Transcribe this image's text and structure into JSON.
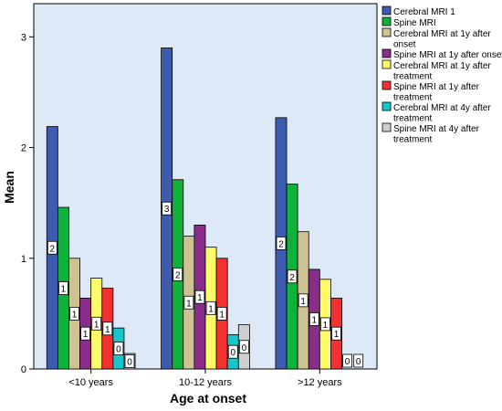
{
  "chart_data": {
    "type": "bar",
    "xlabel": "Age at onset",
    "ylabel": "Mean",
    "ylim": [
      0,
      3.3
    ],
    "yticks": [
      0,
      1,
      2,
      3
    ],
    "grid": false,
    "legend_position": "right",
    "categories": [
      "<10 years",
      "10-12 years",
      ">12 years"
    ],
    "series": [
      {
        "name": "Cerebral MRI 1",
        "color": "#3d5cb0",
        "values": [
          2.19,
          2.9,
          2.27
        ],
        "labels": [
          "2",
          "3",
          "2"
        ]
      },
      {
        "name": "Spine MRI",
        "color": "#0fb13b",
        "values": [
          1.46,
          1.71,
          1.67
        ],
        "labels": [
          "1",
          "2",
          "2"
        ]
      },
      {
        "name": "Cerebral MRI at 1y after onset",
        "color": "#cfc292",
        "values": [
          1.0,
          1.2,
          1.24
        ],
        "labels": [
          "1",
          "1",
          "1"
        ]
      },
      {
        "name": "Spine MRI at 1y after onset",
        "color": "#8a2d8a",
        "values": [
          0.64,
          1.3,
          0.9
        ],
        "labels": [
          "1",
          "1",
          "1"
        ]
      },
      {
        "name": "Cerebral MRI at 1y after treatment",
        "color": "#fffb69",
        "values": [
          0.82,
          1.1,
          0.81
        ],
        "labels": [
          "1",
          "1",
          "1"
        ]
      },
      {
        "name": "Spine MRI at 1y after treatment",
        "color": "#f43030",
        "values": [
          0.73,
          1.0,
          0.64
        ],
        "labels": [
          "1",
          "1",
          "1"
        ]
      },
      {
        "name": "Cerebral MRI at 4y after treatment",
        "color": "#19c4ca",
        "values": [
          0.37,
          0.31,
          0.0
        ],
        "labels": [
          "0",
          "0",
          "0"
        ]
      },
      {
        "name": "Spine MRI at 4y after treatment",
        "color": "#cfcfcf",
        "values": [
          0.14,
          0.4,
          0.0
        ],
        "labels": [
          "0",
          "0",
          "0"
        ]
      }
    ],
    "legend_lines": [
      [
        "Cerebral MRI 1"
      ],
      [
        "Spine MRI"
      ],
      [
        "Cerebral MRI at 1y after",
        "onset"
      ],
      [
        "Spine MRI at 1y after onset"
      ],
      [
        "Cerebral MRI at 1y after",
        "treatment"
      ],
      [
        "Spine MRI at 1y after",
        "treatment"
      ],
      [
        "Cerebral MRI at 4y after",
        "treatment"
      ],
      [
        "Spine MRI at 4y after",
        "treatment"
      ]
    ]
  }
}
